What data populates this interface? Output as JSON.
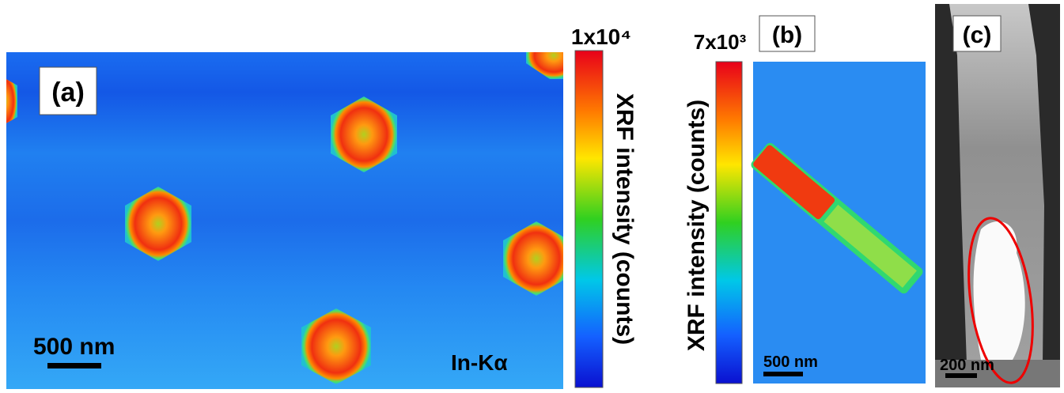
{
  "panels": [
    {
      "label": "(a)",
      "scale_bar": "500 nm",
      "element": "In-Kα",
      "colorbar_max": "1x10⁴",
      "colorbar_title": "XRF intensity (counts)"
    },
    {
      "label": "(b)",
      "scale_bar": "500 nm",
      "colorbar_max": "7x10³",
      "colorbar_title": "XRF intensity (counts)"
    },
    {
      "label": "(c)",
      "scale_bar": "200 nm"
    }
  ]
}
